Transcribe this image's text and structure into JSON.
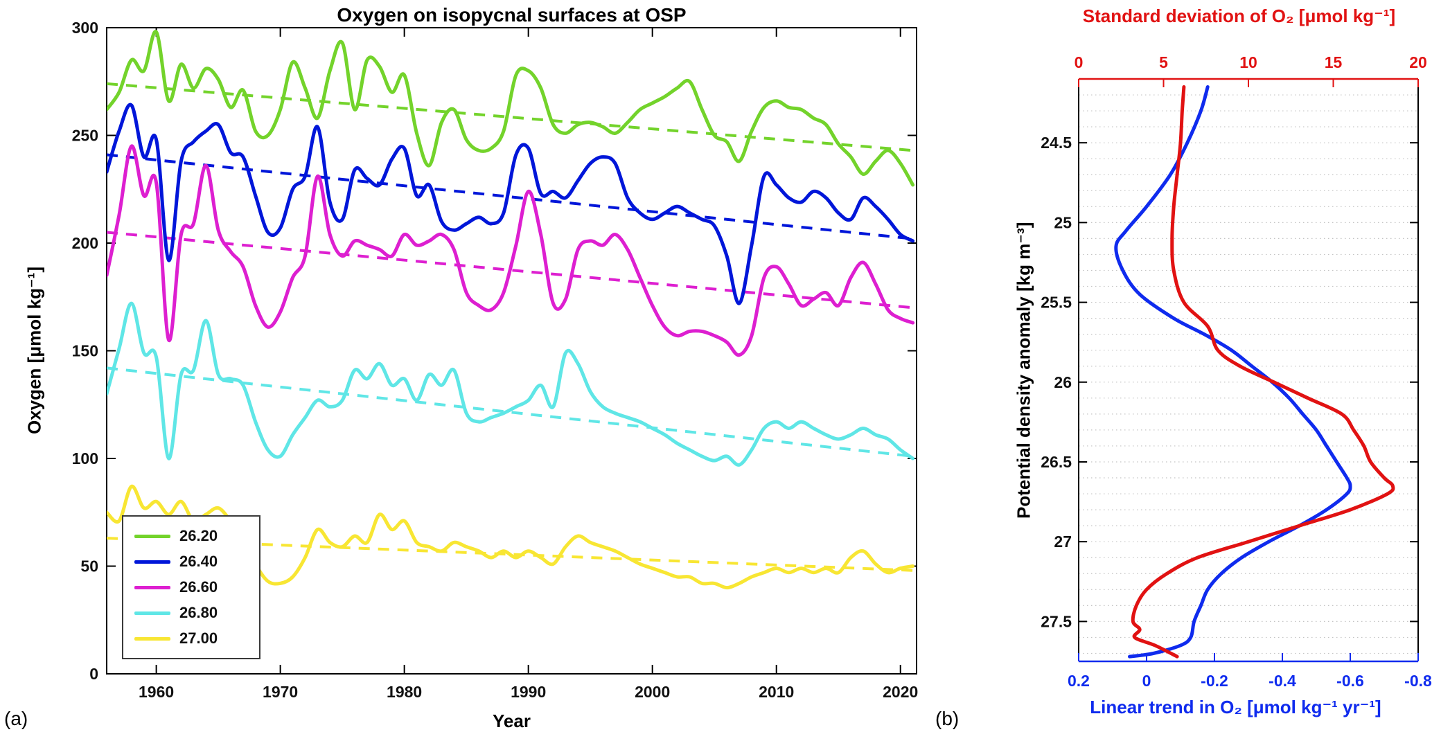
{
  "figure": {
    "panel_a_label": "(a)",
    "panel_b_label": "(b)"
  },
  "colors": {
    "red_axis": "#e11212",
    "blue_axis": "#0f2bee",
    "box": "#000000",
    "grid_dotted": "#c4c4c4"
  },
  "chart_data": [
    {
      "type": "line",
      "panel": "a",
      "title": "Oxygen on isopycnal surfaces at OSP",
      "xlabel": "Year",
      "ylabel": "Oxygen [μmol kg⁻¹]",
      "xlim": [
        1956,
        2021.3
      ],
      "ylim": [
        0,
        300
      ],
      "xticks": [
        1960,
        1970,
        1980,
        1990,
        2000,
        2010,
        2020
      ],
      "yticks": [
        0,
        50,
        100,
        150,
        200,
        250,
        300
      ],
      "legend_position": "lower-left",
      "x": [
        1956,
        1957,
        1958,
        1959,
        1960,
        1961,
        1962,
        1963,
        1964,
        1965,
        1966,
        1967,
        1968,
        1969,
        1970,
        1971,
        1972,
        1973,
        1974,
        1975,
        1976,
        1977,
        1978,
        1979,
        1980,
        1981,
        1982,
        1983,
        1984,
        1985,
        1986,
        1987,
        1988,
        1989,
        1990,
        1991,
        1992,
        1993,
        1994,
        1995,
        1996,
        1997,
        1998,
        1999,
        2000,
        2001,
        2002,
        2003,
        2004,
        2005,
        2006,
        2007,
        2008,
        2009,
        2010,
        2011,
        2012,
        2013,
        2014,
        2015,
        2016,
        2017,
        2018,
        2019,
        2020,
        2021
      ],
      "series": [
        {
          "name": "26.20",
          "color": "#73d32b",
          "values": [
            262,
            270,
            285,
            280,
            298,
            266,
            283,
            272,
            281,
            276,
            263,
            271,
            252,
            250,
            262,
            284,
            272,
            258,
            280,
            293,
            262,
            285,
            282,
            270,
            278,
            251,
            236,
            256,
            262,
            248,
            243,
            244,
            252,
            278,
            280,
            272,
            255,
            251,
            255,
            256,
            254,
            251,
            256,
            262,
            265,
            268,
            272,
            275,
            262,
            250,
            247,
            238,
            252,
            263,
            266,
            263,
            262,
            258,
            255,
            246,
            240,
            232,
            238,
            243,
            237,
            227
          ],
          "trend": {
            "x": [
              1956,
              2021
            ],
            "y": [
              274,
              243
            ]
          }
        },
        {
          "name": "26.40",
          "color": "#0016d9",
          "values": [
            233,
            252,
            264,
            240,
            248,
            192,
            238,
            247,
            252,
            255,
            242,
            240,
            222,
            205,
            207,
            225,
            231,
            254,
            219,
            211,
            234,
            230,
            227,
            239,
            244,
            222,
            227,
            210,
            206,
            209,
            212,
            209,
            214,
            241,
            244,
            223,
            224,
            221,
            229,
            237,
            240,
            237,
            221,
            214,
            211,
            214,
            217,
            214,
            211,
            208,
            194,
            172,
            199,
            231,
            227,
            221,
            219,
            224,
            221,
            214,
            211,
            221,
            217,
            211,
            204,
            201
          ],
          "trend": {
            "x": [
              1956,
              2021
            ],
            "y": [
              241,
              202
            ]
          }
        },
        {
          "name": "26.60",
          "color": "#dd1fd0",
          "values": [
            185,
            213,
            245,
            222,
            228,
            155,
            204,
            209,
            236,
            206,
            196,
            189,
            171,
            161,
            168,
            184,
            194,
            231,
            204,
            194,
            201,
            199,
            197,
            194,
            204,
            199,
            201,
            204,
            197,
            177,
            171,
            169,
            177,
            199,
            224,
            204,
            172,
            174,
            197,
            201,
            199,
            204,
            197,
            184,
            171,
            161,
            157,
            159,
            159,
            157,
            154,
            148,
            157,
            184,
            189,
            181,
            171,
            174,
            177,
            171,
            184,
            191,
            181,
            169,
            165,
            163
          ],
          "trend": {
            "x": [
              1956,
              2021
            ],
            "y": [
              205,
              170
            ]
          }
        },
        {
          "name": "26.80",
          "color": "#5fe6e6",
          "values": [
            130,
            151,
            172,
            149,
            147,
            100,
            139,
            141,
            164,
            139,
            137,
            134,
            117,
            104,
            101,
            111,
            119,
            127,
            124,
            127,
            141,
            137,
            144,
            134,
            137,
            127,
            139,
            134,
            141,
            121,
            117,
            119,
            121,
            124,
            127,
            134,
            124,
            149,
            144,
            131,
            124,
            121,
            119,
            117,
            114,
            111,
            107,
            104,
            101,
            99,
            101,
            97,
            104,
            114,
            117,
            114,
            117,
            114,
            111,
            109,
            111,
            114,
            111,
            109,
            104,
            100
          ],
          "trend": {
            "x": [
              1956,
              2021
            ],
            "y": [
              142,
              101
            ]
          }
        },
        {
          "name": "27.00",
          "color": "#f8e633",
          "values": [
            75,
            71,
            87,
            77,
            80,
            74,
            80,
            71,
            74,
            77,
            71,
            64,
            51,
            43,
            42,
            45,
            54,
            67,
            61,
            59,
            64,
            61,
            74,
            67,
            71,
            61,
            59,
            57,
            61,
            59,
            57,
            54,
            57,
            54,
            57,
            54,
            51,
            59,
            64,
            61,
            59,
            57,
            54,
            51,
            49,
            47,
            45,
            45,
            42,
            42,
            40,
            42,
            45,
            47,
            49,
            47,
            49,
            47,
            49,
            47,
            54,
            57,
            51,
            47,
            49,
            50
          ],
          "trend": {
            "x": [
              1956,
              2021
            ],
            "y": [
              63,
              48
            ]
          }
        }
      ]
    },
    {
      "type": "line",
      "panel": "b",
      "top_xlabel": "Standard deviation of O₂ [μmol kg⁻¹]",
      "bottom_xlabel": "Linear trend in O₂ [μmol kg⁻¹ yr⁻¹]",
      "ylabel": "Potential density anomaly [kg m⁻³]",
      "ylim": [
        24.1,
        27.75
      ],
      "yticks": [
        24.5,
        25,
        25.5,
        26,
        26.5,
        27,
        27.5
      ],
      "ytick_labels": [
        "24.5",
        "25",
        "25.5",
        "26",
        "26.5",
        "27",
        "27.5"
      ],
      "top_xlim": [
        0,
        20
      ],
      "top_xticks": [
        0,
        5,
        10,
        15,
        20
      ],
      "top_xtick_labels": [
        "0",
        "5",
        "10",
        "15",
        "20"
      ],
      "bottom_xlim": [
        0.2,
        -0.8
      ],
      "bottom_xticks": [
        0.2,
        0,
        -0.2,
        -0.4,
        -0.6,
        -0.8
      ],
      "bottom_xtick_labels": [
        "0.2",
        "0",
        "-0.2",
        "-0.4",
        "-0.6",
        "-0.8"
      ],
      "grid_minor_step": 0.1,
      "series": [
        {
          "name": "Linear trend in O2",
          "axis": "bottom",
          "color": "#0f2bee",
          "points": [
            [
              -0.18,
              24.15
            ],
            [
              -0.16,
              24.3
            ],
            [
              -0.12,
              24.5
            ],
            [
              -0.07,
              24.7
            ],
            [
              0.0,
              24.9
            ],
            [
              0.06,
              25.05
            ],
            [
              0.09,
              25.15
            ],
            [
              0.07,
              25.3
            ],
            [
              0.02,
              25.45
            ],
            [
              -0.08,
              25.6
            ],
            [
              -0.17,
              25.7
            ],
            [
              -0.25,
              25.8
            ],
            [
              -0.31,
              25.9
            ],
            [
              -0.37,
              26.0
            ],
            [
              -0.42,
              26.1
            ],
            [
              -0.46,
              26.2
            ],
            [
              -0.5,
              26.3
            ],
            [
              -0.53,
              26.4
            ],
            [
              -0.56,
              26.5
            ],
            [
              -0.59,
              26.6
            ],
            [
              -0.6,
              26.65
            ],
            [
              -0.59,
              26.7
            ],
            [
              -0.53,
              26.8
            ],
            [
              -0.45,
              26.9
            ],
            [
              -0.36,
              27.0
            ],
            [
              -0.28,
              27.1
            ],
            [
              -0.22,
              27.2
            ],
            [
              -0.18,
              27.3
            ],
            [
              -0.16,
              27.4
            ],
            [
              -0.14,
              27.5
            ],
            [
              -0.13,
              27.6
            ],
            [
              -0.1,
              27.65
            ],
            [
              -0.02,
              27.7
            ],
            [
              0.05,
              27.72
            ]
          ]
        },
        {
          "name": "Standard deviation of O2",
          "axis": "top",
          "color": "#e11212",
          "points": [
            [
              6.2,
              24.15
            ],
            [
              6.1,
              24.3
            ],
            [
              6.0,
              24.5
            ],
            [
              5.8,
              24.7
            ],
            [
              5.6,
              24.9
            ],
            [
              5.5,
              25.1
            ],
            [
              5.6,
              25.3
            ],
            [
              6.2,
              25.5
            ],
            [
              7.6,
              25.65
            ],
            [
              8.2,
              25.8
            ],
            [
              9.5,
              25.9
            ],
            [
              11.5,
              26.0
            ],
            [
              13.5,
              26.1
            ],
            [
              15.5,
              26.2
            ],
            [
              16.2,
              26.3
            ],
            [
              16.8,
              26.4
            ],
            [
              17.2,
              26.5
            ],
            [
              18.0,
              26.6
            ],
            [
              18.5,
              26.65
            ],
            [
              18.2,
              26.7
            ],
            [
              16.0,
              26.8
            ],
            [
              13.0,
              26.9
            ],
            [
              10.0,
              27.0
            ],
            [
              7.0,
              27.1
            ],
            [
              5.2,
              27.2
            ],
            [
              4.0,
              27.3
            ],
            [
              3.4,
              27.4
            ],
            [
              3.2,
              27.5
            ],
            [
              3.6,
              27.55
            ],
            [
              3.3,
              27.6
            ],
            [
              4.5,
              27.65
            ],
            [
              5.8,
              27.72
            ]
          ]
        }
      ]
    }
  ]
}
